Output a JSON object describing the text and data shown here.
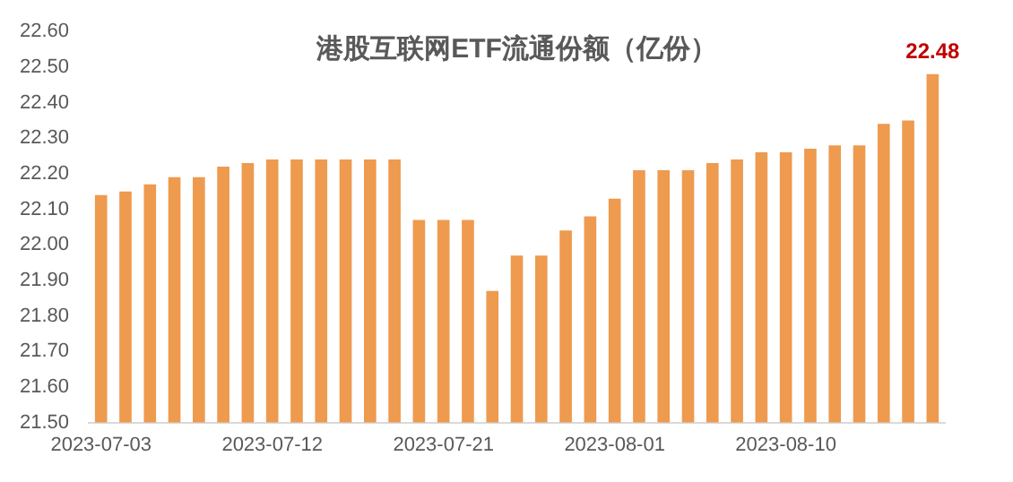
{
  "chart_data": {
    "type": "bar",
    "title": "港股互联网ETF流通份额（亿份）",
    "categories": [
      "2023-07-03",
      null,
      null,
      null,
      null,
      null,
      null,
      "2023-07-12",
      null,
      null,
      null,
      null,
      null,
      null,
      "2023-07-21",
      null,
      null,
      null,
      null,
      null,
      null,
      "2023-08-01",
      null,
      null,
      null,
      null,
      null,
      null,
      "2023-08-10",
      null,
      null,
      null,
      null,
      null,
      null
    ],
    "values": [
      22.14,
      22.15,
      22.17,
      22.19,
      22.19,
      22.22,
      22.23,
      22.24,
      22.24,
      22.24,
      22.24,
      22.24,
      22.24,
      22.07,
      22.07,
      22.07,
      21.87,
      21.97,
      21.97,
      22.04,
      22.08,
      22.13,
      22.21,
      22.21,
      22.21,
      22.23,
      22.24,
      22.26,
      22.26,
      22.27,
      22.28,
      22.28,
      22.34,
      22.35,
      22.48
    ],
    "value_labels": [
      null,
      null,
      null,
      null,
      null,
      null,
      null,
      null,
      null,
      null,
      null,
      null,
      null,
      null,
      null,
      null,
      null,
      null,
      null,
      null,
      null,
      null,
      null,
      null,
      null,
      null,
      null,
      null,
      null,
      null,
      null,
      null,
      null,
      null,
      "22.48"
    ],
    "color": "#ee9a4f",
    "ylim": [
      21.5,
      22.6
    ],
    "yticks": [
      {
        "value": 21.5,
        "label": "21.50"
      },
      {
        "value": 21.6,
        "label": "21.60"
      },
      {
        "value": 21.7,
        "label": "21.70"
      },
      {
        "value": 21.8,
        "label": "21.80"
      },
      {
        "value": 21.9,
        "label": "21.90"
      },
      {
        "value": 22.0,
        "label": "22.00"
      },
      {
        "value": 22.1,
        "label": "22.10"
      },
      {
        "value": 22.2,
        "label": "22.20"
      },
      {
        "value": 22.3,
        "label": "22.30"
      },
      {
        "value": 22.4,
        "label": "22.40"
      },
      {
        "value": 22.5,
        "label": "22.50"
      },
      {
        "value": 22.6,
        "label": "22.60"
      }
    ],
    "grid": false,
    "legend": false
  }
}
